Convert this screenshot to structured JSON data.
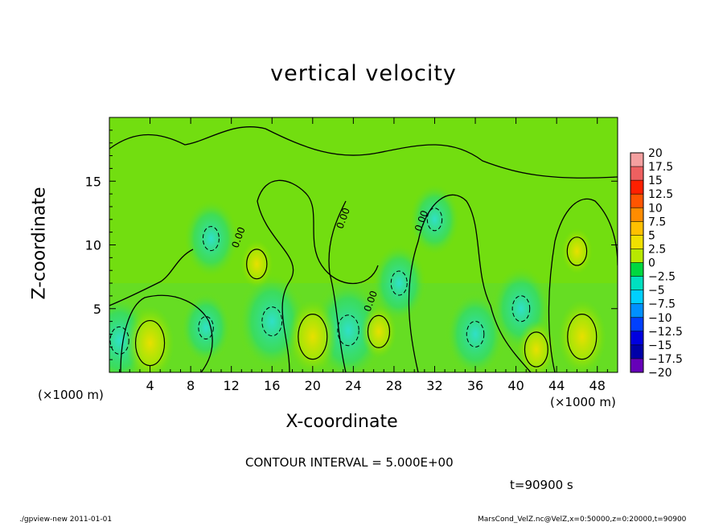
{
  "chart_data": {
    "type": "heatmap",
    "title": "vertical velocity",
    "xlabel": "X-coordinate",
    "ylabel": "Z-coordinate",
    "x_unit": "(×1000 m)",
    "x_ticks": [
      4,
      8,
      12,
      16,
      20,
      24,
      28,
      32,
      36,
      40,
      44,
      48
    ],
    "y_ticks": [
      5,
      10,
      15
    ],
    "xlim": [
      0,
      50
    ],
    "ylim": [
      0,
      20
    ],
    "colorbar": {
      "labels": [
        "20",
        "17.5",
        "15",
        "12.5",
        "10",
        "7.5",
        "5",
        "2.5",
        "0",
        "−2.5",
        "−5",
        "−7.5",
        "−10",
        "−12.5",
        "−15",
        "−17.5",
        "−20"
      ],
      "colors": [
        "#f4a0a0",
        "#ee6060",
        "#ff2000",
        "#ff5500",
        "#ff8c00",
        "#ffc000",
        "#f0e000",
        "#b8e800",
        "#7ae000",
        "#00d840",
        "#00e0c0",
        "#00d0ff",
        "#0090ff",
        "#0040ff",
        "#0000e0",
        "#0000a8",
        "#6600b8"
      ]
    },
    "warm_cells": [
      {
        "x": 4.0,
        "z": 2.3,
        "w": 1.0
      },
      {
        "x": 20.0,
        "z": 2.8,
        "w": 1.0
      },
      {
        "x": 26.5,
        "z": 3.2,
        "w": 0.5
      },
      {
        "x": 42.0,
        "z": 1.8,
        "w": 0.6
      },
      {
        "x": 46.5,
        "z": 2.8,
        "w": 1.0
      },
      {
        "x": 14.5,
        "z": 8.5,
        "w": 0.4
      },
      {
        "x": 46.0,
        "z": 9.5,
        "w": 0.35
      }
    ],
    "cool_cells": [
      {
        "x": 1.0,
        "z": 2.5,
        "w": 0.7
      },
      {
        "x": 9.5,
        "z": 3.5,
        "w": 0.4
      },
      {
        "x": 16.0,
        "z": 4.0,
        "w": 0.8
      },
      {
        "x": 23.5,
        "z": 3.3,
        "w": 0.9
      },
      {
        "x": 28.5,
        "z": 7.0,
        "w": 0.5
      },
      {
        "x": 36.0,
        "z": 3.0,
        "w": 0.6
      },
      {
        "x": 40.5,
        "z": 5.0,
        "w": 0.6
      },
      {
        "x": 10.0,
        "z": 10.5,
        "w": 0.5
      },
      {
        "x": 32.0,
        "z": 12.0,
        "w": 0.4
      }
    ],
    "contour_labels": [
      {
        "text": "0.00",
        "x": 13.0,
        "z": 10.5
      },
      {
        "text": "0.00",
        "x": 23.3,
        "z": 12.0
      },
      {
        "text": "0.00",
        "x": 31.0,
        "z": 11.8
      },
      {
        "text": "0.00",
        "x": 26.0,
        "z": 5.5
      }
    ]
  },
  "labels": {
    "contour_interval": "CONTOUR INTERVAL = 5.000E+00",
    "time": "t=90900 s",
    "footer_left": "./gpview-new   2011-01-01",
    "footer_right": "MarsCond_VelZ.nc@VelZ,x=0:50000,z=0:20000,t=90900"
  }
}
